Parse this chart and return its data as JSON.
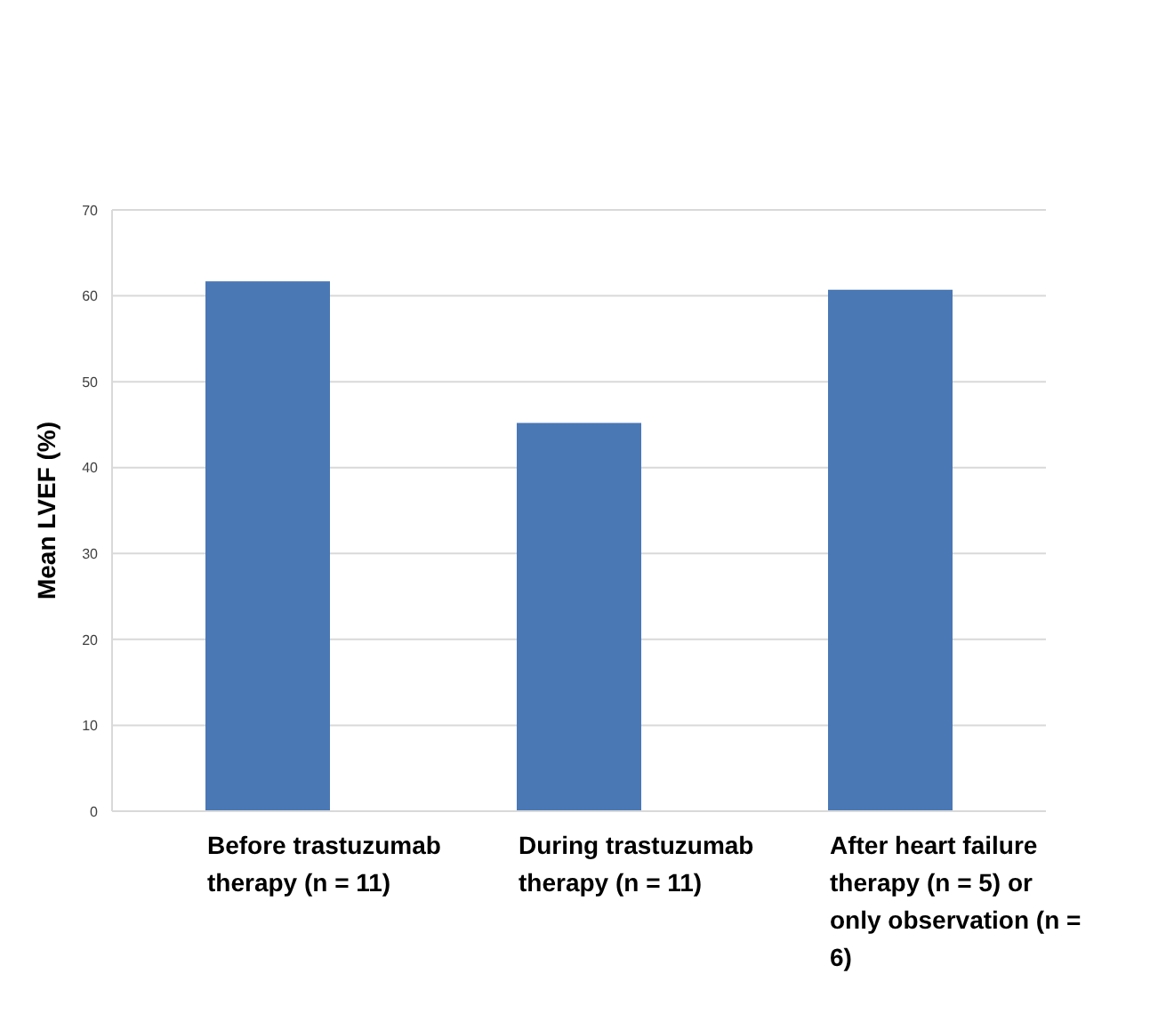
{
  "chart_data": {
    "type": "bar",
    "ylabel": "Mean LVEF (%)",
    "categories": [
      "Before trastuzumab therapy (n = 11)",
      "During trastuzumab therapy (n = 11)",
      "After heart failure therapy (n = 5) or only observation (n = 6)"
    ],
    "values": [
      61.7,
      45.2,
      60.7
    ],
    "color": "#4a78b5",
    "ylim": [
      0,
      70
    ],
    "yticks": [
      0,
      10,
      20,
      30,
      40,
      50,
      60,
      70
    ],
    "grid": "y",
    "legend": false
  }
}
